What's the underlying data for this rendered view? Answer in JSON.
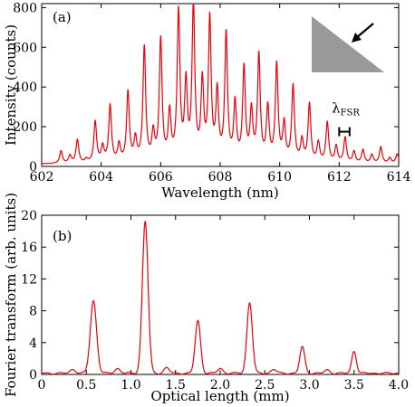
{
  "chart_data": [
    {
      "type": "line",
      "panel_label": "(a)",
      "xlabel": "Wavelength (nm)",
      "ylabel": "Intensity (counts)",
      "xlim": [
        602,
        614
      ],
      "ylim": [
        0,
        820
      ],
      "xticks": [
        602,
        604,
        606,
        608,
        610,
        612,
        614
      ],
      "yticks": [
        0,
        200,
        400,
        600,
        800
      ],
      "line_color": "#e8000b",
      "baseline": 12,
      "peak_width_nm": 0.055,
      "series": [
        {
          "x": [
            602.65,
            602.95,
            603.2,
            603.5,
            603.8,
            604.05,
            604.3,
            604.6,
            604.9,
            605.15,
            605.45,
            605.75,
            606.0,
            606.3,
            606.6,
            606.85,
            607.1,
            607.4,
            607.65,
            607.9,
            608.2,
            608.5,
            608.8,
            609.05,
            609.3,
            609.6,
            609.9,
            610.15,
            610.45,
            610.75,
            611.0,
            611.3,
            611.6,
            611.9,
            612.2,
            612.5,
            612.8,
            613.1,
            613.4,
            613.7,
            613.95
          ],
          "y": [
            75,
            50,
            130,
            30,
            220,
            90,
            300,
            100,
            365,
            125,
            590,
            150,
            625,
            250,
            760,
            390,
            800,
            400,
            720,
            350,
            650,
            300,
            480,
            260,
            545,
            280,
            500,
            200,
            395,
            120,
            305,
            110,
            215,
            95,
            140,
            70,
            80,
            55,
            95,
            40,
            60
          ]
        }
      ],
      "annotation": {
        "label_main": "λ",
        "label_sub": "FSR",
        "x_start": 612.0,
        "x_end": 612.35,
        "y": 175,
        "label_y": 280
      },
      "inset": {
        "shape": "grey-triangle",
        "fill": "#999999",
        "arrow": "pointing down-left"
      }
    },
    {
      "type": "line",
      "panel_label": "(b)",
      "xlabel": "Optical length (mm)",
      "ylabel": "Fourier transform (arb. units)",
      "xlim": [
        0,
        4.0
      ],
      "ylim": [
        0,
        20
      ],
      "xticks": [
        0,
        0.5,
        1.0,
        1.5,
        2.0,
        2.5,
        3.0,
        3.5,
        4.0
      ],
      "xtick_labels": [
        "0",
        "0.5",
        "1.0",
        "1.5",
        "2.0",
        "2.5",
        "3.0",
        "3.5",
        "4.0"
      ],
      "yticks": [
        0,
        4,
        8,
        12,
        16,
        20
      ],
      "line_color": "#e8000b",
      "baseline": 0.15,
      "series": [
        {
          "peaks": [
            {
              "x": 0.58,
              "y": 9.1,
              "width": 0.035
            },
            {
              "x": 1.16,
              "y": 19.1,
              "width": 0.032
            },
            {
              "x": 1.75,
              "y": 6.6,
              "width": 0.03
            },
            {
              "x": 2.33,
              "y": 8.9,
              "width": 0.03
            },
            {
              "x": 2.92,
              "y": 3.3,
              "width": 0.028
            },
            {
              "x": 3.5,
              "y": 2.8,
              "width": 0.026
            }
          ],
          "minor_bumps": [
            {
              "x": 0.35,
              "y": 0.5,
              "width": 0.03
            },
            {
              "x": 0.85,
              "y": 0.6,
              "width": 0.03
            },
            {
              "x": 1.4,
              "y": 0.7,
              "width": 0.03
            },
            {
              "x": 2.0,
              "y": 0.6,
              "width": 0.03
            },
            {
              "x": 2.6,
              "y": 0.5,
              "width": 0.03
            },
            {
              "x": 3.2,
              "y": 0.4,
              "width": 0.03
            }
          ]
        }
      ]
    }
  ]
}
